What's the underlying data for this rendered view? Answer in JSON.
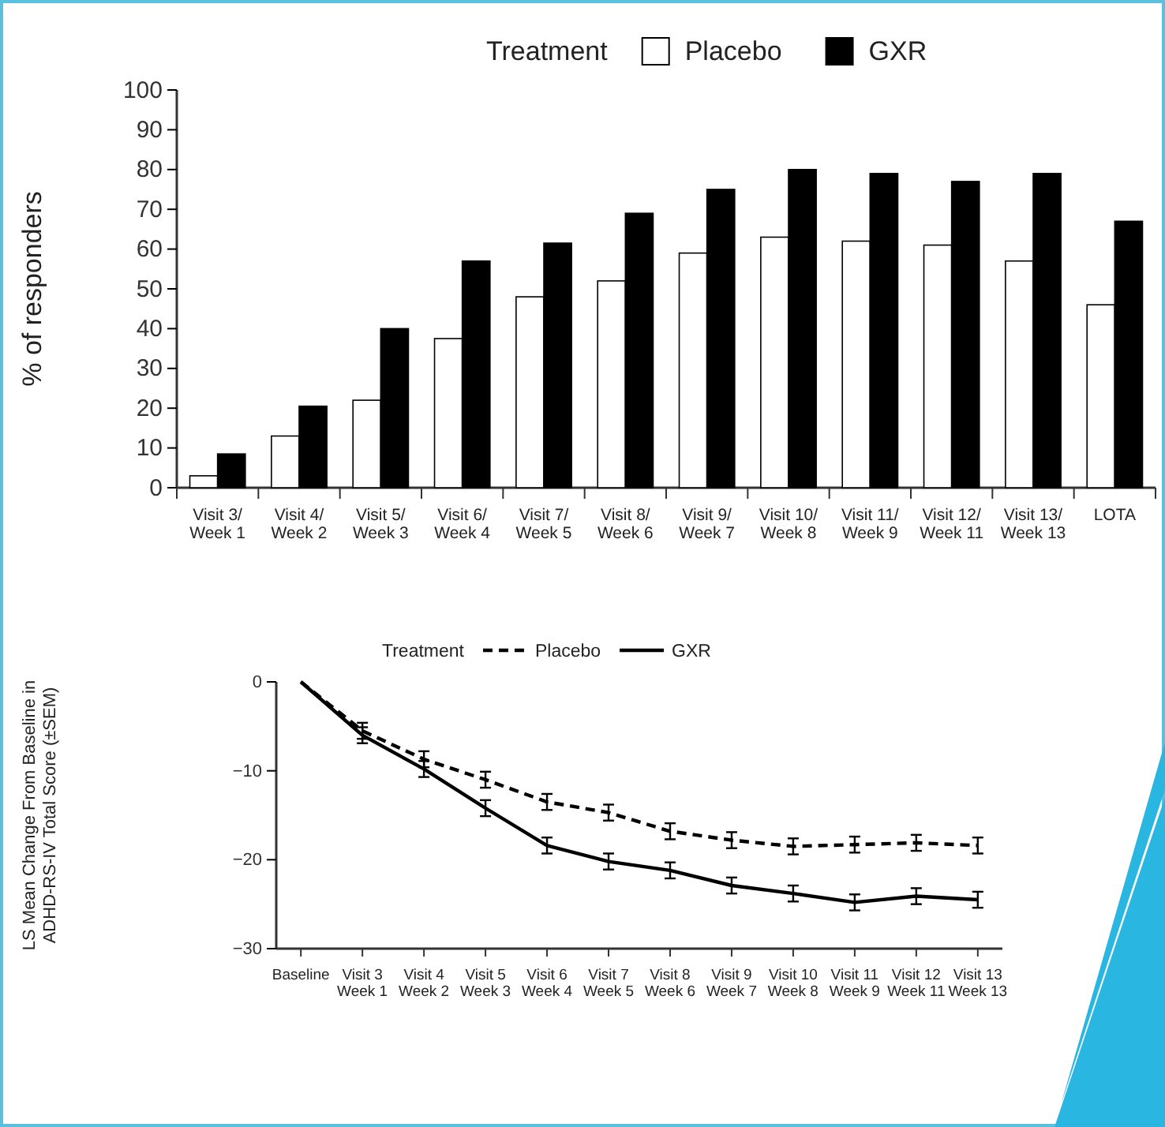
{
  "chart_data": [
    {
      "type": "bar",
      "ylabel": "% of responders",
      "legend_title": "Treatment",
      "legend": "top",
      "categories": [
        "Visit 3/\nWeek 1",
        "Visit 4/\nWeek 2",
        "Visit 5/\nWeek 3",
        "Visit 6/\nWeek 4",
        "Visit 7/\nWeek 5",
        "Visit 8/\nWeek 6",
        "Visit 9/\nWeek 7",
        "Visit 10/\nWeek 8",
        "Visit 11/\nWeek 9",
        "Visit 12/\nWeek 11",
        "Visit 13/\nWeek 13",
        "LOTA"
      ],
      "series": [
        {
          "name": "Placebo",
          "color": "#ffffff",
          "values": [
            3,
            13,
            22,
            37.5,
            48,
            52,
            59,
            63,
            62,
            61,
            57,
            46
          ]
        },
        {
          "name": "GXR",
          "color": "#000000",
          "values": [
            8.5,
            20.5,
            40,
            57,
            61.5,
            69,
            75,
            80,
            79,
            77,
            79,
            67
          ]
        }
      ],
      "ylim": [
        0,
        100
      ],
      "yticks": [
        0,
        10,
        20,
        30,
        40,
        50,
        60,
        70,
        80,
        90,
        100
      ]
    },
    {
      "type": "line",
      "ylabel": "LS Mean Change From Baseline in\nADHD-RS-IV Total Score (±SEM)",
      "legend_title": "Treatment",
      "legend": "top",
      "categories": [
        "Baseline",
        "Visit 3\nWeek 1",
        "Visit 4\nWeek 2",
        "Visit 5\nWeek 3",
        "Visit 6\nWeek 4",
        "Visit 7\nWeek 5",
        "Visit 8\nWeek 6",
        "Visit 9\nWeek 7",
        "Visit 10\nWeek 8",
        "Visit 11\nWeek 9",
        "Visit 12\nWeek 11",
        "Visit 13\nWeek 13"
      ],
      "series": [
        {
          "name": "Placebo",
          "color": "#000000",
          "line_style": "dashed",
          "values": [
            0,
            -5.5,
            -8.7,
            -11,
            -13.5,
            -14.7,
            -16.8,
            -17.8,
            -18.5,
            -18.3,
            -18.1,
            -18.4
          ],
          "errors": [
            null,
            0.9,
            0.9,
            0.9,
            0.9,
            0.9,
            0.9,
            0.9,
            0.9,
            0.9,
            0.9,
            0.9
          ]
        },
        {
          "name": "GXR",
          "color": "#000000",
          "line_style": "solid",
          "values": [
            0,
            -6,
            -9.8,
            -14.2,
            -18.4,
            -20.2,
            -21.2,
            -22.9,
            -23.8,
            -24.8,
            -24.1,
            -24.5
          ],
          "errors": [
            null,
            0.9,
            0.9,
            0.9,
            0.9,
            0.9,
            0.9,
            0.9,
            0.9,
            0.9,
            0.9,
            0.9
          ]
        }
      ],
      "ylim": [
        -30,
        0
      ],
      "yticks": [
        {
          "value": -30,
          "label": "−30"
        },
        {
          "value": -20,
          "label": "−20"
        },
        {
          "value": -10,
          "label": "−10"
        },
        0
      ]
    }
  ]
}
